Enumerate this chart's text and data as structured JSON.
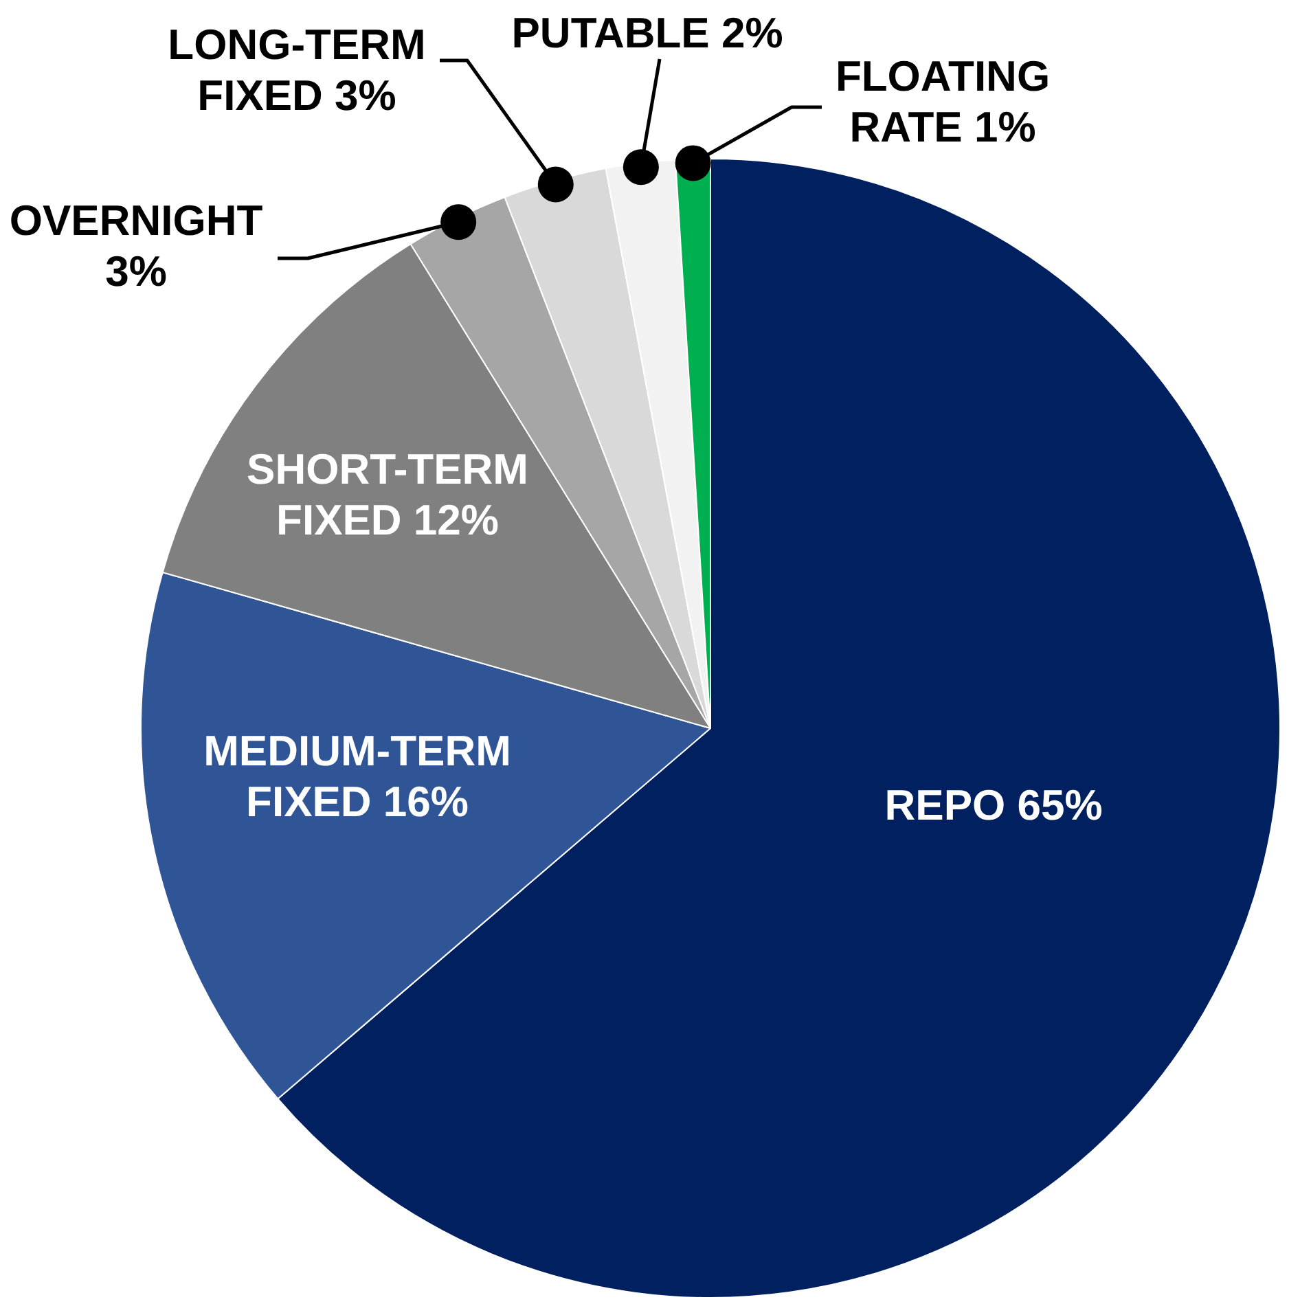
{
  "chart_data": {
    "type": "pie",
    "categories": [
      "REPO",
      "MEDIUM-TERM FIXED",
      "SHORT-TERM FIXED",
      "OVERNIGHT",
      "LONG-TERM FIXED",
      "PUTABLE",
      "FLOATING RATE"
    ],
    "values": [
      65,
      16,
      12,
      3,
      3,
      2,
      1
    ],
    "colors": [
      "#002060",
      "#2f5597",
      "#808080",
      "#a6a6a6",
      "#d9d9d9",
      "#f2f2f2",
      "#00b050"
    ],
    "value_labels": [
      "65%",
      "16%",
      "12%",
      "3%",
      "3%",
      "2%",
      "1%"
    ]
  }
}
